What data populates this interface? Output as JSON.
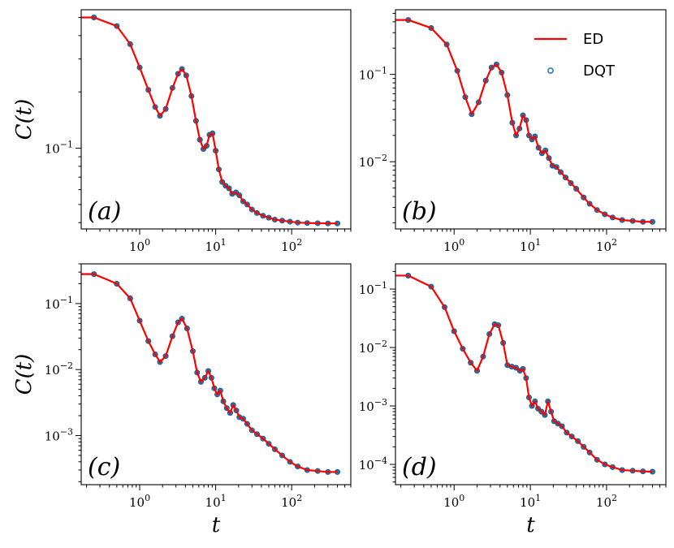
{
  "chart_data": [
    {
      "type": "line",
      "panel_label": "(a)",
      "xlabel": "",
      "ylabel": "C(t)",
      "xscale": "log",
      "yscale": "log",
      "xlim": [
        0.17,
        600
      ],
      "ylim": [
        0.037,
        0.55
      ],
      "xticks": [
        {
          "value": 1,
          "label": "10^0"
        },
        {
          "value": 10,
          "label": "10^1"
        },
        {
          "value": 100,
          "label": "10^2"
        }
      ],
      "yticks": [
        {
          "value": 0.1,
          "label": "10^-1"
        }
      ],
      "legend": null,
      "series": [
        {
          "name": "ED",
          "style": "line",
          "color": "#ff0000",
          "x": [
            0.17,
            0.25,
            0.5,
            0.75,
            1.0,
            1.3,
            1.6,
            1.85,
            2.2,
            2.7,
            3.2,
            3.6,
            4.1,
            4.8,
            5.5,
            6.2,
            6.9,
            7.6,
            8.3,
            9.1,
            10.0,
            11.0,
            12.2,
            13.5,
            15.0,
            16.5,
            18.5,
            20.5,
            23,
            26,
            30,
            35,
            42,
            50,
            60,
            75,
            95,
            120,
            160,
            220,
            300,
            400
          ],
          "y": [
            0.5,
            0.5,
            0.45,
            0.36,
            0.27,
            0.205,
            0.166,
            0.149,
            0.162,
            0.21,
            0.25,
            0.265,
            0.245,
            0.19,
            0.14,
            0.111,
            0.099,
            0.103,
            0.118,
            0.12,
            0.097,
            0.077,
            0.066,
            0.063,
            0.061,
            0.057,
            0.058,
            0.056,
            0.052,
            0.05,
            0.047,
            0.045,
            0.0435,
            0.0425,
            0.0415,
            0.041,
            0.0405,
            0.04,
            0.0398,
            0.0397,
            0.0396,
            0.0396
          ]
        },
        {
          "name": "DQT",
          "style": "markers",
          "color": "#1f77b4",
          "x": [
            0.25,
            0.5,
            0.75,
            1.0,
            1.3,
            1.6,
            1.85,
            2.2,
            2.7,
            3.2,
            3.6,
            4.1,
            4.8,
            5.5,
            6.2,
            6.9,
            7.6,
            8.3,
            9.1,
            10.0,
            11.0,
            12.2,
            13.5,
            15.0,
            16.5,
            18.5,
            20.5,
            23,
            26,
            30,
            35,
            42,
            50,
            60,
            75,
            95,
            120,
            160,
            220,
            300,
            400
          ],
          "y": [
            0.5,
            0.45,
            0.36,
            0.27,
            0.205,
            0.166,
            0.149,
            0.162,
            0.21,
            0.25,
            0.265,
            0.245,
            0.19,
            0.14,
            0.111,
            0.099,
            0.103,
            0.118,
            0.12,
            0.097,
            0.077,
            0.066,
            0.063,
            0.061,
            0.057,
            0.058,
            0.056,
            0.052,
            0.05,
            0.047,
            0.045,
            0.0435,
            0.0425,
            0.0415,
            0.041,
            0.0405,
            0.04,
            0.0398,
            0.0397,
            0.0396,
            0.0396
          ]
        }
      ]
    },
    {
      "type": "line",
      "panel_label": "(b)",
      "xlabel": "",
      "ylabel": "",
      "xscale": "log",
      "yscale": "log",
      "xlim": [
        0.17,
        600
      ],
      "ylim": [
        0.0017,
        0.55
      ],
      "xticks": [
        {
          "value": 1,
          "label": "10^0"
        },
        {
          "value": 10,
          "label": "10^1"
        },
        {
          "value": 100,
          "label": "10^2"
        }
      ],
      "yticks": [
        {
          "value": 0.1,
          "label": "10^-1"
        },
        {
          "value": 0.01,
          "label": "10^-2"
        }
      ],
      "legend": {
        "position": "top-right",
        "entries": [
          "ED",
          "DQT"
        ]
      },
      "series": [
        {
          "name": "ED",
          "style": "line",
          "color": "#ff0000",
          "x": [
            0.17,
            0.25,
            0.5,
            0.8,
            1.1,
            1.4,
            1.7,
            2.1,
            2.6,
            3.1,
            3.6,
            4.2,
            5.0,
            5.8,
            6.5,
            7.2,
            8.0,
            8.8,
            9.6,
            10.5,
            11.5,
            12.8,
            14.2,
            15.8,
            17.5,
            19.5,
            22,
            25,
            29,
            34,
            40,
            50,
            60,
            75,
            95,
            120,
            160,
            220,
            300,
            400
          ],
          "y": [
            0.42,
            0.42,
            0.34,
            0.22,
            0.11,
            0.055,
            0.035,
            0.048,
            0.085,
            0.12,
            0.13,
            0.105,
            0.058,
            0.028,
            0.02,
            0.024,
            0.034,
            0.03,
            0.02,
            0.018,
            0.0195,
            0.0145,
            0.0125,
            0.0135,
            0.011,
            0.009,
            0.0087,
            0.0076,
            0.0066,
            0.0057,
            0.0049,
            0.0039,
            0.0033,
            0.0028,
            0.0025,
            0.0023,
            0.00215,
            0.0021,
            0.00205,
            0.00205
          ]
        },
        {
          "name": "DQT",
          "style": "markers",
          "color": "#1f77b4",
          "x": [
            0.25,
            0.5,
            0.8,
            1.1,
            1.4,
            1.7,
            2.1,
            2.6,
            3.1,
            3.6,
            4.2,
            5.0,
            5.8,
            6.5,
            7.2,
            8.0,
            8.8,
            9.6,
            10.5,
            11.5,
            12.8,
            14.2,
            15.8,
            17.5,
            19.5,
            22,
            25,
            29,
            34,
            40,
            50,
            60,
            75,
            95,
            120,
            160,
            220,
            300,
            400
          ],
          "y": [
            0.42,
            0.34,
            0.22,
            0.11,
            0.055,
            0.035,
            0.048,
            0.085,
            0.12,
            0.13,
            0.105,
            0.058,
            0.028,
            0.02,
            0.024,
            0.034,
            0.03,
            0.02,
            0.018,
            0.0195,
            0.0145,
            0.0125,
            0.0135,
            0.011,
            0.009,
            0.0087,
            0.0076,
            0.0066,
            0.0057,
            0.0049,
            0.0039,
            0.0033,
            0.0028,
            0.0025,
            0.0023,
            0.00215,
            0.0021,
            0.00205,
            0.00205
          ]
        }
      ]
    },
    {
      "type": "line",
      "panel_label": "(c)",
      "xlabel": "t",
      "ylabel": "C(t)",
      "xscale": "log",
      "yscale": "log",
      "xlim": [
        0.17,
        600
      ],
      "ylim": [
        0.00018,
        0.4
      ],
      "xticks": [
        {
          "value": 1,
          "label": "10^0"
        },
        {
          "value": 10,
          "label": "10^1"
        },
        {
          "value": 100,
          "label": "10^2"
        }
      ],
      "yticks": [
        {
          "value": 0.1,
          "label": "10^-1"
        },
        {
          "value": 0.01,
          "label": "10^-2"
        },
        {
          "value": 0.001,
          "label": "10^-3"
        }
      ],
      "legend": null,
      "series": [
        {
          "name": "ED",
          "style": "line",
          "color": "#ff0000",
          "x": [
            0.17,
            0.25,
            0.5,
            0.75,
            1.0,
            1.3,
            1.6,
            1.85,
            2.2,
            2.7,
            3.2,
            3.6,
            4.2,
            5.0,
            5.7,
            6.4,
            7.2,
            8.0,
            8.8,
            9.6,
            10.5,
            11.5,
            12.6,
            14,
            15.5,
            17,
            18.7,
            20.5,
            23,
            26,
            30,
            35,
            42,
            50,
            60,
            75,
            95,
            120,
            160,
            220,
            300,
            400
          ],
          "y": [
            0.28,
            0.28,
            0.2,
            0.12,
            0.055,
            0.027,
            0.017,
            0.013,
            0.016,
            0.032,
            0.052,
            0.059,
            0.042,
            0.019,
            0.009,
            0.0065,
            0.0075,
            0.0095,
            0.0075,
            0.0052,
            0.0042,
            0.0048,
            0.0033,
            0.0026,
            0.0022,
            0.0029,
            0.0024,
            0.0019,
            0.0018,
            0.0015,
            0.0012,
            0.00105,
            0.0009,
            0.00075,
            0.00062,
            0.0005,
            0.0004,
            0.00034,
            0.0003,
            0.00029,
            0.00028,
            0.00028
          ]
        },
        {
          "name": "DQT",
          "style": "markers",
          "color": "#1f77b4",
          "x": [
            0.25,
            0.5,
            0.75,
            1.0,
            1.3,
            1.6,
            1.85,
            2.2,
            2.7,
            3.2,
            3.6,
            4.2,
            5.0,
            5.7,
            6.4,
            7.2,
            8.0,
            8.8,
            9.6,
            10.5,
            11.5,
            12.6,
            14,
            15.5,
            17,
            18.7,
            20.5,
            23,
            26,
            30,
            35,
            42,
            50,
            60,
            75,
            95,
            120,
            160,
            220,
            300,
            400
          ],
          "y": [
            0.28,
            0.2,
            0.12,
            0.055,
            0.027,
            0.017,
            0.013,
            0.016,
            0.032,
            0.052,
            0.059,
            0.042,
            0.019,
            0.009,
            0.0065,
            0.0075,
            0.0095,
            0.0075,
            0.0052,
            0.0042,
            0.0048,
            0.0033,
            0.0026,
            0.0022,
            0.0029,
            0.0024,
            0.0019,
            0.0018,
            0.0015,
            0.0012,
            0.00105,
            0.0009,
            0.00075,
            0.00062,
            0.0005,
            0.0004,
            0.00034,
            0.0003,
            0.00029,
            0.00028,
            0.00028
          ]
        }
      ]
    },
    {
      "type": "line",
      "panel_label": "(d)",
      "xlabel": "t",
      "ylabel": "",
      "xscale": "log",
      "yscale": "log",
      "xlim": [
        0.17,
        600
      ],
      "ylim": [
        4.5e-05,
        0.27
      ],
      "xticks": [
        {
          "value": 1,
          "label": "10^0"
        },
        {
          "value": 10,
          "label": "10^1"
        },
        {
          "value": 100,
          "label": "10^2"
        }
      ],
      "yticks": [
        {
          "value": 0.1,
          "label": "10^-1"
        },
        {
          "value": 0.01,
          "label": "10^-2"
        },
        {
          "value": 0.001,
          "label": "10^-3"
        },
        {
          "value": 0.0001,
          "label": "10^-4"
        }
      ],
      "legend": null,
      "series": [
        {
          "name": "ED",
          "style": "line",
          "color": "#ff0000",
          "x": [
            0.17,
            0.25,
            0.5,
            0.75,
            1.0,
            1.3,
            1.65,
            2.0,
            2.4,
            2.9,
            3.4,
            3.8,
            4.4,
            5.0,
            5.7,
            6.5,
            7.3,
            8.0,
            8.8,
            9.6,
            10.5,
            11.5,
            12.6,
            14,
            15.5,
            17,
            18.7,
            20.5,
            23,
            26,
            30,
            35,
            42,
            50,
            60,
            75,
            95,
            120,
            160,
            220,
            300,
            400
          ],
          "y": [
            0.17,
            0.17,
            0.11,
            0.049,
            0.019,
            0.0095,
            0.0055,
            0.004,
            0.007,
            0.017,
            0.025,
            0.024,
            0.012,
            0.005,
            0.0047,
            0.0045,
            0.004,
            0.0043,
            0.003,
            0.0014,
            0.001,
            0.0012,
            0.0009,
            0.0008,
            0.0007,
            0.0012,
            0.0008,
            0.00055,
            0.0005,
            0.00045,
            0.00035,
            0.0003,
            0.00025,
            0.0002,
            0.00016,
            0.00012,
            0.0001,
            9e-05,
            8e-05,
            7.8e-05,
            7.6e-05,
            7.5e-05
          ]
        },
        {
          "name": "DQT",
          "style": "markers",
          "color": "#1f77b4",
          "x": [
            0.25,
            0.5,
            0.75,
            1.0,
            1.3,
            1.65,
            2.0,
            2.4,
            2.9,
            3.4,
            3.8,
            4.4,
            5.0,
            5.7,
            6.5,
            7.3,
            8.0,
            8.8,
            9.6,
            10.5,
            11.5,
            12.6,
            14,
            15.5,
            17,
            18.7,
            20.5,
            23,
            26,
            30,
            35,
            42,
            50,
            60,
            75,
            95,
            120,
            160,
            220,
            300,
            400
          ],
          "y": [
            0.17,
            0.11,
            0.049,
            0.019,
            0.0095,
            0.0055,
            0.004,
            0.007,
            0.017,
            0.025,
            0.024,
            0.012,
            0.005,
            0.0047,
            0.0045,
            0.004,
            0.0043,
            0.003,
            0.0014,
            0.001,
            0.0012,
            0.0009,
            0.0008,
            0.0007,
            0.0012,
            0.0008,
            0.00055,
            0.0005,
            0.00045,
            0.00035,
            0.0003,
            0.00025,
            0.0002,
            0.00016,
            0.00012,
            0.0001,
            9e-05,
            8e-05,
            7.8e-05,
            7.6e-05,
            7.5e-05
          ]
        }
      ]
    }
  ]
}
